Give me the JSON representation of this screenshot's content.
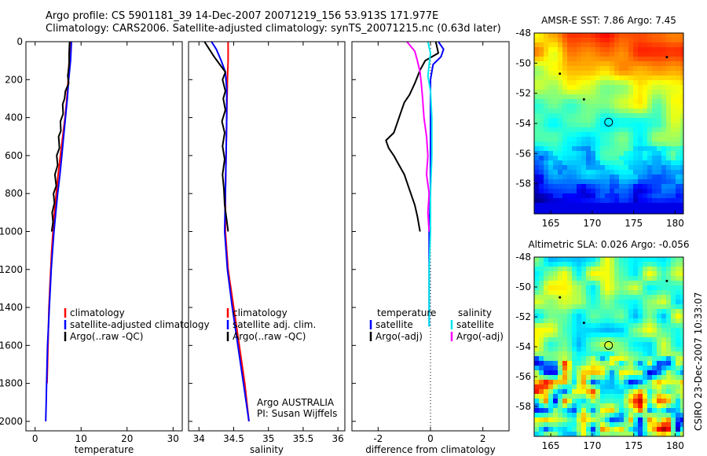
{
  "header": {
    "line1": "Argo profile: CS 5901181_39 14-Dec-2007 20071219_156 53.913S 171.977E",
    "line2": "Climatology: CARS2006. Satellite-adjusted climatology: synTS_20071215.nc (0.63d later)"
  },
  "footer": {
    "credit": "CSIRO 23-Dec-2007 10:33:07"
  },
  "colors": {
    "climatology": "#ff0000",
    "satellite": "#0000ff",
    "argo": "#000000",
    "salinity_satellite": "#00e5ee",
    "salinity_argo": "#ff00ff"
  },
  "chart_data": [
    {
      "type": "line",
      "id": "temperature",
      "xlabel": "temperature",
      "ylabel": "",
      "xlim": [
        -2,
        32
      ],
      "ylim": [
        0,
        2050
      ],
      "y_reversed": true,
      "xticks": [
        0,
        10,
        20,
        30
      ],
      "yticks": [
        0,
        200,
        400,
        600,
        800,
        1000,
        1200,
        1400,
        1600,
        1800,
        2000
      ],
      "legend": [
        "climatology",
        "satellite-adjusted climatology",
        "Argo(..raw -QC)"
      ],
      "legend_position": "lower-right",
      "series": [
        {
          "name": "climatology",
          "color": "#ff0000",
          "points": [
            [
              7.6,
              0
            ],
            [
              7.5,
              50
            ],
            [
              7.4,
              100
            ],
            [
              7.2,
              200
            ],
            [
              6.9,
              300
            ],
            [
              6.5,
              400
            ],
            [
              6.0,
              500
            ],
            [
              5.5,
              600
            ],
            [
              5.0,
              700
            ],
            [
              4.6,
              800
            ],
            [
              4.2,
              900
            ],
            [
              3.9,
              1000
            ],
            [
              3.6,
              1100
            ],
            [
              3.4,
              1200
            ],
            [
              3.2,
              1300
            ],
            [
              3.0,
              1400
            ],
            [
              2.9,
              1500
            ],
            [
              2.8,
              1600
            ],
            [
              2.7,
              1700
            ],
            [
              2.6,
              1800
            ]
          ]
        },
        {
          "name": "satellite-adjusted climatology",
          "color": "#0000ff",
          "points": [
            [
              7.9,
              0
            ],
            [
              7.8,
              50
            ],
            [
              7.7,
              100
            ],
            [
              7.5,
              150
            ],
            [
              7.3,
              200
            ],
            [
              7.0,
              300
            ],
            [
              6.6,
              400
            ],
            [
              6.2,
              500
            ],
            [
              5.8,
              600
            ],
            [
              5.4,
              700
            ],
            [
              4.9,
              800
            ],
            [
              4.5,
              900
            ],
            [
              4.1,
              1000
            ],
            [
              3.8,
              1100
            ],
            [
              3.5,
              1200
            ],
            [
              3.3,
              1300
            ],
            [
              3.1,
              1400
            ],
            [
              2.9,
              1500
            ],
            [
              2.7,
              1600
            ],
            [
              2.6,
              1700
            ],
            [
              2.5,
              1800
            ],
            [
              2.4,
              1900
            ],
            [
              2.3,
              2000
            ]
          ]
        },
        {
          "name": "Argo(..raw -QC)",
          "color": "#000000",
          "points": [
            [
              7.5,
              0
            ],
            [
              7.4,
              60
            ],
            [
              7.4,
              120
            ],
            [
              7.1,
              180
            ],
            [
              7.3,
              220
            ],
            [
              6.6,
              260
            ],
            [
              6.4,
              300
            ],
            [
              6.0,
              330
            ],
            [
              6.1,
              380
            ],
            [
              5.5,
              420
            ],
            [
              5.6,
              470
            ],
            [
              5.1,
              500
            ],
            [
              5.3,
              560
            ],
            [
              4.7,
              600
            ],
            [
              4.9,
              650
            ],
            [
              4.3,
              700
            ],
            [
              4.6,
              760
            ],
            [
              4.0,
              800
            ],
            [
              4.2,
              850
            ],
            [
              3.7,
              900
            ],
            [
              3.9,
              950
            ],
            [
              3.6,
              1000
            ]
          ]
        }
      ]
    },
    {
      "type": "line",
      "id": "salinity",
      "xlabel": "salinity",
      "ylabel": "",
      "xlim": [
        33.85,
        36.1
      ],
      "ylim": [
        0,
        2050
      ],
      "y_reversed": true,
      "xticks": [
        34,
        34.5,
        35,
        35.5,
        36
      ],
      "legend": [
        "climatology",
        "satellite adj. clim.",
        "Argo(..raw -QC)"
      ],
      "legend_position": "lower-right",
      "annotation": [
        "Argo AUSTRALIA",
        "PI: Susan Wijffels"
      ],
      "series": [
        {
          "name": "climatology",
          "color": "#ff0000",
          "points": [
            [
              34.42,
              0
            ],
            [
              34.42,
              100
            ],
            [
              34.41,
              200
            ],
            [
              34.4,
              400
            ],
            [
              34.39,
              600
            ],
            [
              34.38,
              800
            ],
            [
              34.38,
              1000
            ],
            [
              34.42,
              1200
            ],
            [
              34.5,
              1400
            ],
            [
              34.58,
              1600
            ],
            [
              34.66,
              1800
            ],
            [
              34.72,
              2000
            ]
          ]
        },
        {
          "name": "satellite adj. clim.",
          "color": "#0000ff",
          "points": [
            [
              34.18,
              0
            ],
            [
              34.25,
              40
            ],
            [
              34.32,
              100
            ],
            [
              34.38,
              160
            ],
            [
              34.4,
              250
            ],
            [
              34.4,
              400
            ],
            [
              34.39,
              600
            ],
            [
              34.38,
              800
            ],
            [
              34.37,
              1000
            ],
            [
              34.41,
              1200
            ],
            [
              34.48,
              1400
            ],
            [
              34.56,
              1600
            ],
            [
              34.64,
              1800
            ],
            [
              34.72,
              2000
            ]
          ]
        },
        {
          "name": "Argo(..raw -QC)",
          "color": "#000000",
          "points": [
            [
              34.08,
              0
            ],
            [
              34.15,
              40
            ],
            [
              34.22,
              80
            ],
            [
              34.3,
              120
            ],
            [
              34.38,
              160
            ],
            [
              34.34,
              200
            ],
            [
              34.38,
              260
            ],
            [
              34.35,
              300
            ],
            [
              34.38,
              360
            ],
            [
              34.33,
              420
            ],
            [
              34.37,
              480
            ],
            [
              34.34,
              550
            ],
            [
              34.37,
              620
            ],
            [
              34.34,
              700
            ],
            [
              34.36,
              780
            ],
            [
              34.37,
              860
            ],
            [
              34.4,
              940
            ],
            [
              34.42,
              1000
            ]
          ]
        }
      ]
    },
    {
      "type": "line",
      "id": "difference",
      "xlabel": "difference from climatology",
      "ylabel": "",
      "xlim": [
        -3,
        3
      ],
      "ylim": [
        0,
        2050
      ],
      "y_reversed": true,
      "xticks": [
        -2,
        0,
        2
      ],
      "legend_groups": [
        {
          "title": "temperature",
          "entries": [
            "satellite",
            "Argo(-adj)"
          ]
        },
        {
          "title": "salinity",
          "entries": [
            "satellite",
            "Argo(-adj)"
          ]
        }
      ],
      "legend_position": "lower-right",
      "series": [
        {
          "name": "temperature satellite",
          "color": "#0000ff",
          "points": [
            [
              0.3,
              0
            ],
            [
              0.5,
              40
            ],
            [
              0.4,
              80
            ],
            [
              0.1,
              120
            ],
            [
              0.0,
              200
            ],
            [
              0.0,
              400
            ],
            [
              0.0,
              800
            ],
            [
              -0.05,
              1000
            ],
            [
              -0.05,
              1300
            ],
            [
              -0.05,
              1500
            ]
          ]
        },
        {
          "name": "temperature Argo(-adj)",
          "color": "#000000",
          "points": [
            [
              0.2,
              0
            ],
            [
              0.3,
              60
            ],
            [
              -0.2,
              100
            ],
            [
              -0.4,
              150
            ],
            [
              -0.6,
              220
            ],
            [
              -0.8,
              280
            ],
            [
              -1.0,
              320
            ],
            [
              -1.1,
              360
            ],
            [
              -1.2,
              400
            ],
            [
              -1.3,
              440
            ],
            [
              -1.4,
              480
            ],
            [
              -1.7,
              520
            ],
            [
              -1.6,
              560
            ],
            [
              -1.4,
              600
            ],
            [
              -1.2,
              650
            ],
            [
              -1.0,
              700
            ],
            [
              -0.8,
              780
            ],
            [
              -0.6,
              860
            ],
            [
              -0.5,
              920
            ],
            [
              -0.4,
              1000
            ]
          ]
        },
        {
          "name": "salinity satellite",
          "color": "#00e5ee",
          "points": [
            [
              -0.1,
              0
            ],
            [
              0.0,
              60
            ],
            [
              -0.05,
              120
            ],
            [
              -0.1,
              180
            ],
            [
              0.0,
              260
            ],
            [
              0.05,
              400
            ],
            [
              0.05,
              600
            ],
            [
              0.0,
              800
            ],
            [
              0.0,
              1000
            ],
            [
              -0.05,
              1200
            ],
            [
              -0.05,
              1400
            ],
            [
              -0.05,
              1500
            ]
          ]
        },
        {
          "name": "salinity Argo(-adj)",
          "color": "#ff00ff",
          "points": [
            [
              -0.9,
              0
            ],
            [
              -0.6,
              50
            ],
            [
              -0.5,
              100
            ],
            [
              -0.4,
              160
            ],
            [
              -0.35,
              220
            ],
            [
              -0.3,
              300
            ],
            [
              -0.25,
              400
            ],
            [
              -0.15,
              500
            ],
            [
              -0.1,
              600
            ],
            [
              -0.15,
              700
            ],
            [
              -0.05,
              800
            ],
            [
              -0.1,
              900
            ],
            [
              -0.05,
              1000
            ]
          ]
        }
      ]
    },
    {
      "type": "heatmap",
      "id": "sst_map",
      "title": "AMSR-E SST: 7.86 Argo: 7.45",
      "xlim": [
        163,
        181
      ],
      "ylim": [
        -60,
        -48
      ],
      "xticks": [
        165,
        170,
        175,
        180
      ],
      "yticks": [
        -48,
        -50,
        -52,
        -54,
        -56,
        -58
      ],
      "marker": {
        "lon": 171.977,
        "lat": -53.913
      }
    },
    {
      "type": "heatmap",
      "id": "sla_map",
      "title": "Altimetric SLA: 0.026 Argo: -0.056",
      "xlim": [
        163,
        181
      ],
      "ylim": [
        -60,
        -48
      ],
      "xticks": [
        165,
        170,
        175,
        180
      ],
      "yticks": [
        -48,
        -50,
        -52,
        -54,
        -56,
        -58
      ],
      "marker": {
        "lon": 171.977,
        "lat": -53.913
      }
    }
  ]
}
